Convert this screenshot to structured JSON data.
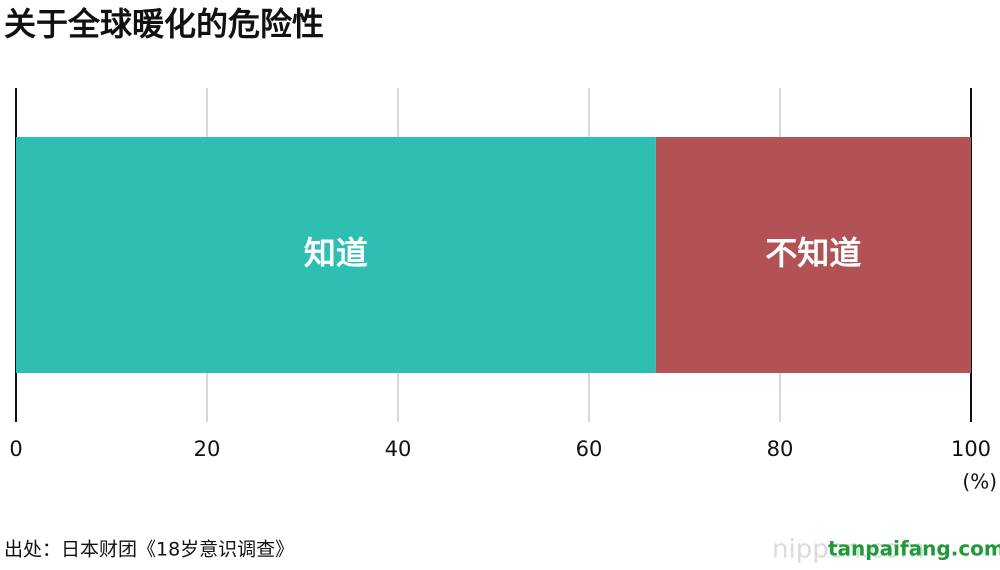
{
  "chart_data": {
    "type": "stacked-bar-horizontal",
    "title": "关于全球暖化的危险性",
    "series": [
      {
        "name": "知道",
        "color": "#2dbfb2",
        "values": [
          67
        ]
      },
      {
        "name": "不知道",
        "color": "#b35254",
        "values": [
          33
        ]
      }
    ],
    "xlim": [
      0,
      100
    ],
    "xticks": [
      0,
      20,
      40,
      60,
      80,
      100
    ],
    "xlabel": "(%)",
    "grid": true,
    "source": "出处：日本财团《18岁意识调查》",
    "watermarks": [
      "nippon.com",
      "tanpaifang.com"
    ]
  }
}
